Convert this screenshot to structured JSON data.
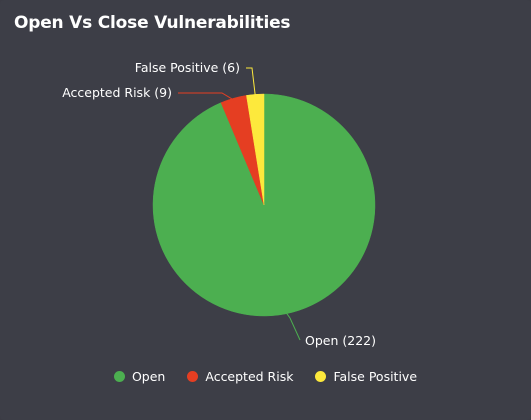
{
  "chart_data": {
    "type": "pie",
    "title": "Open Vs Close Vulnerabilities",
    "categories": [
      "Open",
      "Accepted Risk",
      "False Positive"
    ],
    "values": [
      222,
      9,
      6
    ],
    "labels": [
      "Open (222)",
      "Accepted Risk (9)",
      "False Positive (6)"
    ],
    "colors": [
      "#4caf50",
      "#e53e22",
      "#fde93c"
    ],
    "legend_position": "bottom"
  },
  "legend": {
    "items": [
      {
        "label": "Open",
        "color": "#4caf50"
      },
      {
        "label": "Accepted Risk",
        "color": "#e53e22"
      },
      {
        "label": "False Positive",
        "color": "#fde93c"
      }
    ]
  }
}
